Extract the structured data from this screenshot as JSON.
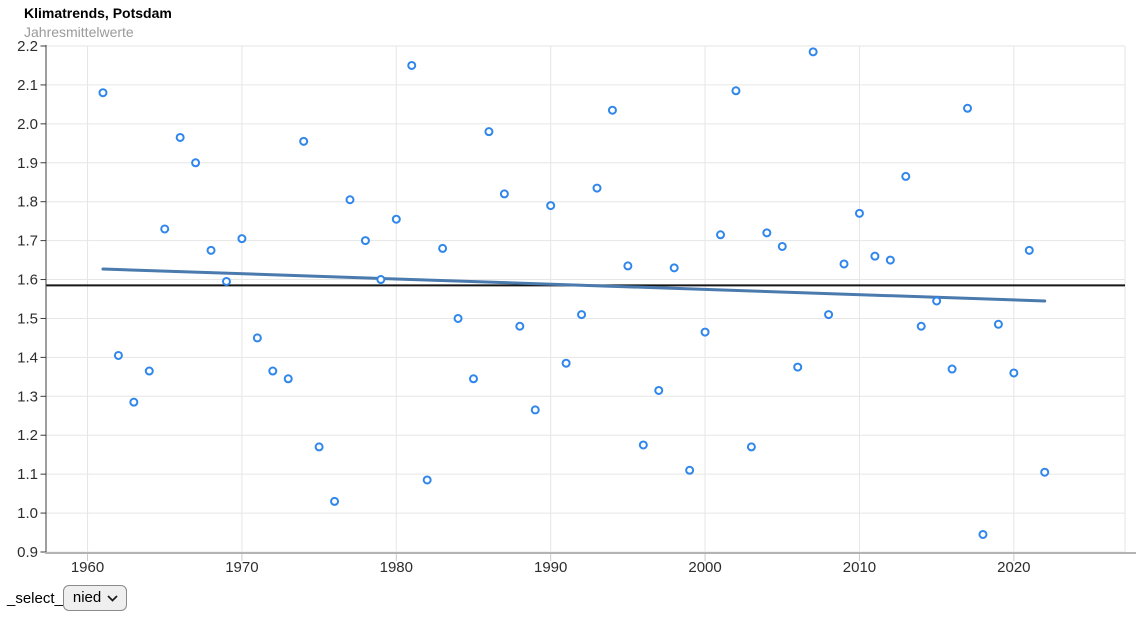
{
  "header": {
    "title": "Klimatrends, Potsdam",
    "subtitle": "Jahresmittelwerte"
  },
  "controls": {
    "label": "_select_",
    "select_value": "nied"
  },
  "chart_data": {
    "type": "scatter",
    "title": "Klimatrends, Potsdam",
    "subtitle": "Jahresmittelwerte",
    "xlabel": "",
    "ylabel": "",
    "grid": true,
    "legend": "none",
    "xlim": [
      1957.31,
      2027.2
    ],
    "ylim": [
      0.9,
      2.2
    ],
    "x_ticks": [
      1960,
      1970,
      1980,
      1990,
      2000,
      2010,
      2020
    ],
    "y_ticks": [
      0.9,
      1.0,
      1.1,
      1.2,
      1.3,
      1.4,
      1.5,
      1.6,
      1.7,
      1.8,
      1.9,
      2.0,
      2.1,
      2.2
    ],
    "series": [
      {
        "name": "Jahresmittelwerte",
        "x": [
          1961,
          1962,
          1963,
          1964,
          1965,
          1966,
          1967,
          1968,
          1969,
          1970,
          1971,
          1972,
          1973,
          1974,
          1975,
          1976,
          1977,
          1978,
          1979,
          1980,
          1981,
          1982,
          1983,
          1984,
          1985,
          1986,
          1987,
          1988,
          1989,
          1990,
          1991,
          1992,
          1993,
          1994,
          1995,
          1996,
          1997,
          1998,
          1999,
          2000,
          2001,
          2002,
          2003,
          2004,
          2005,
          2006,
          2007,
          2008,
          2009,
          2010,
          2011,
          2012,
          2013,
          2014,
          2015,
          2016,
          2017,
          2018,
          2019,
          2020,
          2021,
          2022
        ],
        "y": [
          2.08,
          1.405,
          1.285,
          1.365,
          1.73,
          1.965,
          1.9,
          1.675,
          1.595,
          1.705,
          1.45,
          1.365,
          1.345,
          1.955,
          1.17,
          1.03,
          1.805,
          1.7,
          1.6,
          1.755,
          2.15,
          1.085,
          1.68,
          1.5,
          1.345,
          1.98,
          1.82,
          1.48,
          1.265,
          1.79,
          1.385,
          1.51,
          1.835,
          2.035,
          1.635,
          1.175,
          1.315,
          1.63,
          1.11,
          1.465,
          1.715,
          2.085,
          1.17,
          1.72,
          1.685,
          1.375,
          2.185,
          1.51,
          1.64,
          1.77,
          1.66,
          1.65,
          1.865,
          1.48,
          1.545,
          1.37,
          2.04,
          0.945,
          1.485,
          1.36,
          1.675,
          1.105
        ]
      }
    ],
    "mean_line": {
      "value": 1.585
    },
    "trend_line": {
      "x1": 1961,
      "y1": 1.627,
      "x2": 2022,
      "y2": 1.545
    },
    "colors": {
      "point": "#2f86eb",
      "trend": "#4a7aae",
      "mean": "#161616",
      "grid": "#e6e6e6",
      "axis_line": "#b3b3b3",
      "spine": "#3d3d3d",
      "x_tick": "#c9c9c9",
      "tick_text": "#2d2d2d"
    }
  }
}
